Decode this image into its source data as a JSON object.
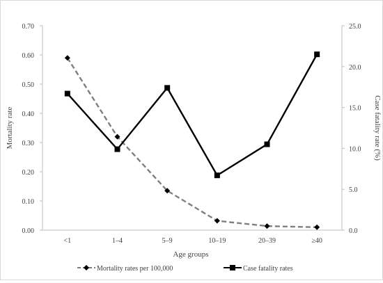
{
  "chart_data": {
    "type": "line",
    "categories": [
      "<1",
      "1–4",
      "5–9",
      "10–19",
      "20–39",
      "≥40"
    ],
    "xlabel": "Age groups",
    "ylabel_left": "Mortality rate",
    "ylabel_right": "Case fatality rate (%)",
    "ylim_left": [
      0,
      0.7
    ],
    "ylim_right": [
      0,
      25
    ],
    "yticks_left": [
      "0.00",
      "0.10",
      "0.20",
      "0.30",
      "0.40",
      "0.50",
      "0.60",
      "0.70"
    ],
    "yticks_right": [
      "0.0",
      "5.0",
      "10.0",
      "15.0",
      "20.0",
      "25.0"
    ],
    "grid": false,
    "legend_position": "bottom",
    "series": [
      {
        "name": "Mortality rates per 100,000",
        "axis": "left",
        "values": [
          0.59,
          0.32,
          0.135,
          0.032,
          0.014,
          0.01
        ],
        "color": "#7f7f7f",
        "line_style": "dashed",
        "marker": "diamond"
      },
      {
        "name": "Case fatality rates",
        "axis": "right",
        "values": [
          16.7,
          9.9,
          17.4,
          6.7,
          10.5,
          21.5
        ],
        "color": "#000000",
        "line_style": "solid",
        "marker": "square"
      }
    ]
  }
}
